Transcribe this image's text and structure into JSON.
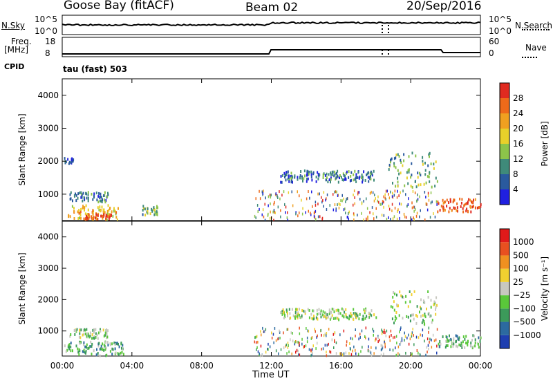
{
  "header": {
    "station": "Goose Bay (fitACF)",
    "beam": "Beam 02",
    "date": "20/Sep/2016"
  },
  "status_panel": {
    "nsky_label": "N.Sky",
    "nsky_ticks": [
      "10^5",
      "10^0"
    ],
    "nsearch_label": "N.Search",
    "nsearch_ticks": [
      "10^5",
      "10^0"
    ],
    "freq_label": "Freq.",
    "freq_unit": "[MHz]",
    "freq_ticks": [
      "18",
      "8"
    ],
    "nave_label": "Nave",
    "nave_ticks": [
      "60",
      "0"
    ],
    "cpid_label": "CPID",
    "cpid_value": "tau (fast) 503"
  },
  "chart_data": [
    {
      "type": "heatmap",
      "title": "",
      "xlabel": "",
      "ylabel": "Slant Range [km]",
      "x_ticks": [
        "00:00",
        "04:00",
        "08:00",
        "12:00",
        "16:00",
        "20:00",
        "00:00"
      ],
      "y_ticks": [
        1000,
        2000,
        3000,
        4000
      ],
      "ylim": [
        200,
        4500
      ],
      "colorbar": {
        "label": "Power [dB]",
        "ticks": [
          "4",
          "8",
          "12",
          "16",
          "20",
          "24",
          "28"
        ],
        "colors": [
          "#2020e0",
          "#2a5a9e",
          "#3f8a7a",
          "#8cc44a",
          "#e8d02a",
          "#f0a020",
          "#ee6a1a",
          "#e02a20"
        ]
      },
      "echo_regions": [
        {
          "t_start": 0.0,
          "t_end": 0.6,
          "r_low": 1950,
          "r_high": 2150,
          "level": 1
        },
        {
          "t_start": 0.3,
          "t_end": 3.2,
          "r_low": 250,
          "r_high": 700,
          "level": 5
        },
        {
          "t_start": 1.3,
          "t_end": 2.8,
          "r_low": 280,
          "r_high": 450,
          "level": 7
        },
        {
          "t_start": 0.4,
          "t_end": 2.6,
          "r_low": 800,
          "r_high": 1100,
          "level": 2
        },
        {
          "t_start": 4.5,
          "t_end": 5.5,
          "r_low": 400,
          "r_high": 700,
          "level": 3
        },
        {
          "t_start": 12.5,
          "t_end": 18.0,
          "r_low": 1400,
          "r_high": 1750,
          "level": 2
        },
        {
          "t_start": 18.7,
          "t_end": 21.5,
          "r_low": 1250,
          "r_high": 2300,
          "level": 3
        },
        {
          "t_start": 21.5,
          "t_end": 24.0,
          "r_low": 500,
          "r_high": 900,
          "level": 7
        }
      ]
    },
    {
      "type": "heatmap",
      "title": "",
      "xlabel": "Time UT",
      "ylabel": "Slant Range [km]",
      "x_ticks": [
        "00:00",
        "04:00",
        "08:00",
        "12:00",
        "16:00",
        "20:00",
        "00:00"
      ],
      "y_ticks": [
        1000,
        2000,
        3000,
        4000
      ],
      "ylim": [
        200,
        4500
      ],
      "colorbar": {
        "label": "Velocity [m s⁻¹]",
        "ticks": [
          "1000",
          "500",
          "100",
          "25",
          "−25",
          "−100",
          "−500",
          "−1000"
        ],
        "colors": [
          "#1f3fb0",
          "#2c6aa0",
          "#3c9a5a",
          "#5ac83a",
          "#c8c8c0",
          "#f0d030",
          "#f09020",
          "#e85020",
          "#e01a1a"
        ]
      },
      "echo_regions": [
        {
          "t_start": 0.0,
          "t_end": 3.5,
          "r_low": 250,
          "r_high": 700,
          "level": 3
        },
        {
          "t_start": 0.4,
          "t_end": 2.6,
          "r_low": 800,
          "r_high": 1100,
          "level": 4
        },
        {
          "t_start": 12.5,
          "t_end": 18.0,
          "r_low": 1400,
          "r_high": 1750,
          "level": 4
        },
        {
          "t_start": 18.7,
          "t_end": 21.5,
          "r_low": 1250,
          "r_high": 2300,
          "level": 4
        },
        {
          "t_start": 21.5,
          "t_end": 24.0,
          "r_low": 500,
          "r_high": 900,
          "level": 3
        }
      ]
    }
  ]
}
